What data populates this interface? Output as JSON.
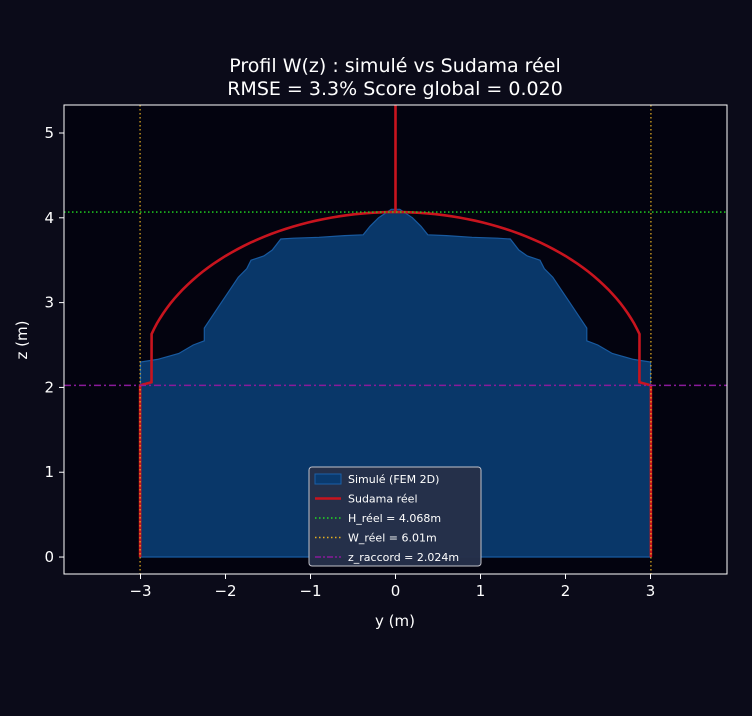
{
  "chart_data": {
    "type": "line",
    "title": "Profil W(z) : simulé vs Sudama réel",
    "subtitle": "RMSE = 3.3%  Score global = 0.020",
    "xlabel": "y (m)",
    "ylabel": "z (m)",
    "xlim": [
      -3.9,
      3.9
    ],
    "ylim": [
      -0.2,
      5.33
    ],
    "x_ticks": [
      -3,
      -2,
      -1,
      0,
      1,
      2,
      3
    ],
    "y_ticks": [
      0,
      1,
      2,
      3,
      4,
      5
    ],
    "x_tick_labels": [
      "−3",
      "−2",
      "−1",
      "0",
      "1",
      "2",
      "3"
    ],
    "y_tick_labels": [
      "0",
      "1",
      "2",
      "3",
      "4",
      "5"
    ],
    "grid": false,
    "legend_position": "lower-center",
    "colors": {
      "background": "#0b0b19",
      "plot_bg": "#03030f",
      "simulated_fill": "#0a3a6e",
      "simulated_edge": "#1a5fa8",
      "sudama": "#c8141e",
      "h_line": "#22dd22",
      "w_line": "#e6b020",
      "z_line": "#8a1a9a"
    },
    "series": [
      {
        "name": "Simulé (FEM 2D)",
        "kind": "area",
        "points": [
          [
            -3.0,
            0
          ],
          [
            -3.0,
            2.3
          ],
          [
            -2.8,
            2.33
          ],
          [
            -2.55,
            2.4
          ],
          [
            -2.38,
            2.5
          ],
          [
            -2.25,
            2.55
          ],
          [
            -2.25,
            2.7
          ],
          [
            -2.15,
            2.85
          ],
          [
            -2.05,
            3.0
          ],
          [
            -1.95,
            3.15
          ],
          [
            -1.85,
            3.3
          ],
          [
            -1.75,
            3.4
          ],
          [
            -1.7,
            3.5
          ],
          [
            -1.55,
            3.55
          ],
          [
            -1.45,
            3.62
          ],
          [
            -1.35,
            3.75
          ],
          [
            -1.2,
            3.76
          ],
          [
            -0.9,
            3.77
          ],
          [
            -0.6,
            3.79
          ],
          [
            -0.38,
            3.8
          ],
          [
            -0.3,
            3.9
          ],
          [
            -0.2,
            4.0
          ],
          [
            -0.05,
            4.1
          ],
          [
            0.05,
            4.1
          ],
          [
            0.2,
            4.0
          ],
          [
            0.3,
            3.9
          ],
          [
            0.38,
            3.8
          ],
          [
            0.6,
            3.79
          ],
          [
            0.9,
            3.77
          ],
          [
            1.2,
            3.76
          ],
          [
            1.35,
            3.75
          ],
          [
            1.45,
            3.62
          ],
          [
            1.55,
            3.55
          ],
          [
            1.7,
            3.5
          ],
          [
            1.75,
            3.4
          ],
          [
            1.85,
            3.3
          ],
          [
            1.95,
            3.15
          ],
          [
            2.05,
            3.0
          ],
          [
            2.15,
            2.85
          ],
          [
            2.25,
            2.7
          ],
          [
            2.25,
            2.55
          ],
          [
            2.38,
            2.5
          ],
          [
            2.55,
            2.4
          ],
          [
            2.8,
            2.33
          ],
          [
            3.0,
            2.3
          ],
          [
            3.0,
            0
          ]
        ]
      },
      {
        "name": "Sudama réel",
        "kind": "profile",
        "half_width": 3.005,
        "z_raccord": 2.024,
        "height": 4.068,
        "crown_start_y": 2.87,
        "crown_start_z": 2.06,
        "spike_top": 5.33
      },
      {
        "name": "H_réel = 4.068m",
        "kind": "hline",
        "value": 4.068
      },
      {
        "name": "W_réel = 6.01m",
        "kind": "vlines",
        "values": [
          -3.005,
          3.005
        ]
      },
      {
        "name": "z_raccord = 2.024m",
        "kind": "hline",
        "value": 2.024
      }
    ]
  }
}
